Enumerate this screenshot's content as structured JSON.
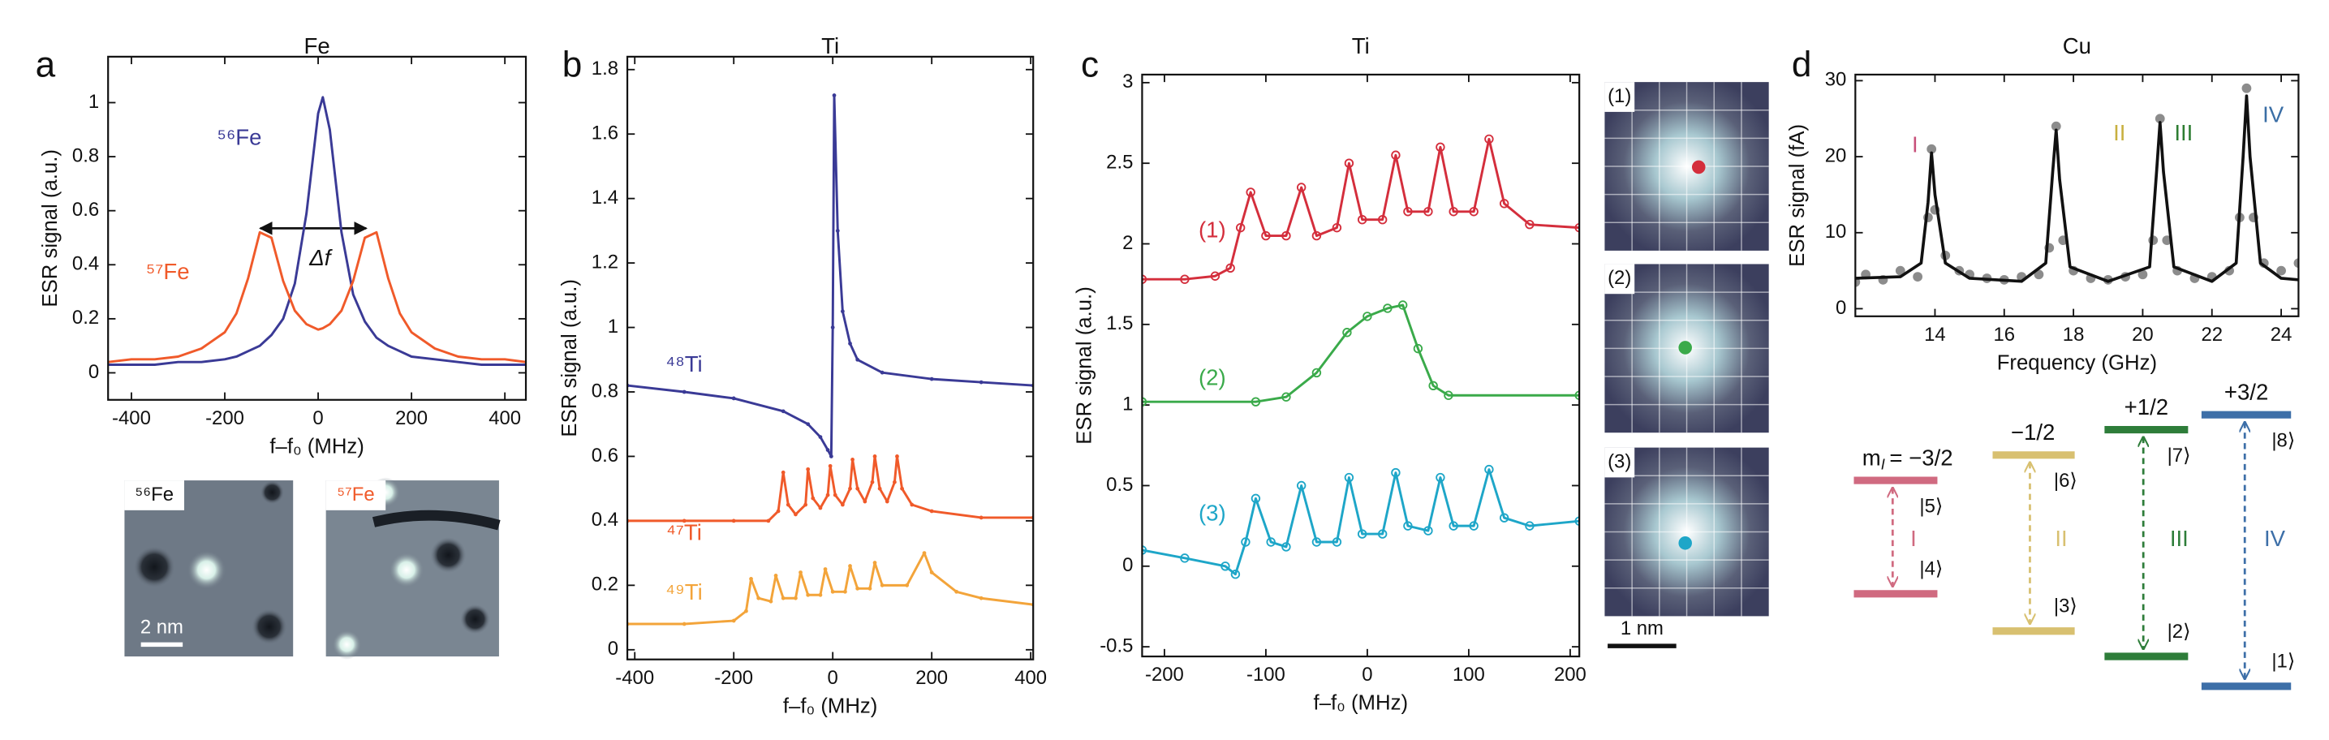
{
  "panel_labels": [
    "a",
    "b",
    "c",
    "d"
  ],
  "chart_data": [
    {
      "type": "line",
      "title": "Fe",
      "xlabel": "f–f₀ (MHz)",
      "ylabel": "ESR signal (a.u.)",
      "xlim": [
        -450,
        445
      ],
      "ylim": [
        -0.1,
        1.17
      ],
      "xticks": [
        -400,
        -200,
        0,
        200,
        400
      ],
      "yticks": [
        0,
        0.2,
        0.4,
        0.6,
        0.8,
        1
      ],
      "annotations": [
        "Δf"
      ],
      "series": [
        {
          "name": "⁵⁶Fe",
          "color": "#3a3a96",
          "line": true,
          "marker": "none",
          "x": [
            -450,
            -400,
            -350,
            -300,
            -250,
            -200,
            -175,
            -150,
            -125,
            -100,
            -75,
            -50,
            -25,
            0,
            10,
            25,
            50,
            75,
            100,
            125,
            150,
            175,
            200,
            250,
            300,
            350,
            400,
            445
          ],
          "values": [
            0.03,
            0.03,
            0.03,
            0.04,
            0.04,
            0.05,
            0.06,
            0.08,
            0.1,
            0.14,
            0.2,
            0.33,
            0.59,
            0.96,
            1.02,
            0.9,
            0.52,
            0.29,
            0.19,
            0.13,
            0.1,
            0.08,
            0.06,
            0.05,
            0.04,
            0.03,
            0.03,
            0.03
          ]
        },
        {
          "name": "⁵⁷Fe",
          "color": "#f05a2a",
          "line": true,
          "marker": "none",
          "x": [
            -450,
            -400,
            -350,
            -300,
            -250,
            -200,
            -175,
            -150,
            -125,
            -100,
            -75,
            -50,
            -25,
            0,
            10,
            25,
            50,
            75,
            100,
            125,
            150,
            175,
            200,
            250,
            300,
            350,
            400,
            445
          ],
          "values": [
            0.04,
            0.05,
            0.05,
            0.06,
            0.09,
            0.15,
            0.22,
            0.35,
            0.52,
            0.5,
            0.34,
            0.23,
            0.18,
            0.16,
            0.165,
            0.18,
            0.23,
            0.34,
            0.5,
            0.52,
            0.35,
            0.22,
            0.15,
            0.09,
            0.06,
            0.05,
            0.05,
            0.04
          ]
        }
      ]
    },
    {
      "type": "line",
      "title": "Ti",
      "xlabel": "f–f₀ (MHz)",
      "ylabel": "ESR signal (a.u.)",
      "xlim": [
        -415,
        405
      ],
      "ylim": [
        -0.03,
        1.84
      ],
      "xticks": [
        -400,
        -200,
        0,
        200,
        400
      ],
      "yticks": [
        0,
        0.2,
        0.4,
        0.6,
        0.8,
        1,
        1.2,
        1.4,
        1.6,
        1.8
      ],
      "series": [
        {
          "name": "⁴⁸Ti",
          "color": "#3a3a96",
          "line": true,
          "marker": "dot",
          "x": [
            -415,
            -300,
            -200,
            -100,
            -50,
            -25,
            -10,
            -3,
            0,
            3,
            10,
            20,
            35,
            50,
            100,
            200,
            300,
            405
          ],
          "values": [
            0.82,
            0.8,
            0.78,
            0.74,
            0.7,
            0.66,
            0.62,
            0.6,
            1.0,
            1.72,
            1.3,
            1.05,
            0.95,
            0.9,
            0.86,
            0.84,
            0.83,
            0.82
          ]
        },
        {
          "name": "⁴⁷Ti",
          "color": "#f05a2a",
          "line": true,
          "marker": "dot",
          "x": [
            -415,
            -300,
            -200,
            -130,
            -110,
            -100,
            -90,
            -75,
            -55,
            -50,
            -40,
            -25,
            -10,
            -5,
            5,
            20,
            35,
            40,
            50,
            65,
            80,
            85,
            95,
            110,
            125,
            130,
            140,
            160,
            200,
            300,
            405
          ],
          "values": [
            0.4,
            0.4,
            0.4,
            0.4,
            0.43,
            0.55,
            0.45,
            0.42,
            0.45,
            0.56,
            0.47,
            0.44,
            0.48,
            0.57,
            0.48,
            0.45,
            0.5,
            0.59,
            0.5,
            0.46,
            0.52,
            0.6,
            0.5,
            0.46,
            0.52,
            0.6,
            0.5,
            0.45,
            0.43,
            0.41,
            0.41
          ]
        },
        {
          "name": "⁴⁹Ti",
          "color": "#f3a43a",
          "line": true,
          "marker": "dot",
          "x": [
            -415,
            -300,
            -200,
            -175,
            -165,
            -150,
            -125,
            -115,
            -100,
            -75,
            -65,
            -50,
            -25,
            -15,
            0,
            25,
            35,
            50,
            75,
            85,
            100,
            150,
            185,
            200,
            250,
            300,
            405
          ],
          "values": [
            0.08,
            0.08,
            0.09,
            0.12,
            0.22,
            0.16,
            0.15,
            0.23,
            0.16,
            0.16,
            0.24,
            0.17,
            0.17,
            0.25,
            0.18,
            0.18,
            0.26,
            0.19,
            0.19,
            0.27,
            0.2,
            0.2,
            0.3,
            0.24,
            0.18,
            0.16,
            0.14
          ]
        }
      ]
    },
    {
      "type": "line",
      "title": "Ti",
      "xlabel": "f–f₀ (MHz)",
      "ylabel": "ESR signal (a.u.)",
      "xlim": [
        -222,
        209
      ],
      "ylim": [
        -0.56,
        3.05
      ],
      "xticks": [
        -200,
        -100,
        0,
        100,
        200
      ],
      "yticks": [
        -0.5,
        0,
        0.5,
        1,
        1.5,
        2,
        2.5,
        3
      ],
      "series": [
        {
          "name": "(1)",
          "color": "#d42e3c",
          "line": true,
          "marker": "open-circle",
          "x": [
            -222,
            -180,
            -150,
            -135,
            -125,
            -115,
            -100,
            -80,
            -65,
            -50,
            -30,
            -18,
            -5,
            15,
            28,
            40,
            60,
            72,
            85,
            105,
            120,
            135,
            160,
            209
          ],
          "values": [
            1.78,
            1.78,
            1.8,
            1.85,
            2.1,
            2.32,
            2.05,
            2.05,
            2.35,
            2.05,
            2.1,
            2.5,
            2.15,
            2.15,
            2.55,
            2.2,
            2.2,
            2.6,
            2.2,
            2.2,
            2.65,
            2.25,
            2.12,
            2.1
          ]
        },
        {
          "name": "(2)",
          "color": "#3aaa4a",
          "line": true,
          "marker": "open-circle",
          "x": [
            -222,
            -110,
            -80,
            -50,
            -20,
            0,
            20,
            35,
            50,
            65,
            80,
            209
          ],
          "values": [
            1.02,
            1.02,
            1.05,
            1.2,
            1.45,
            1.55,
            1.6,
            1.62,
            1.35,
            1.12,
            1.06,
            1.06
          ]
        },
        {
          "name": "(3)",
          "color": "#1ea6c8",
          "line": true,
          "marker": "open-circle",
          "x": [
            -222,
            -180,
            -140,
            -130,
            -120,
            -110,
            -95,
            -80,
            -65,
            -50,
            -30,
            -18,
            -5,
            15,
            28,
            40,
            60,
            72,
            85,
            105,
            120,
            135,
            160,
            209
          ],
          "values": [
            0.1,
            0.05,
            0.0,
            -0.05,
            0.15,
            0.42,
            0.15,
            0.12,
            0.5,
            0.15,
            0.15,
            0.55,
            0.2,
            0.2,
            0.58,
            0.25,
            0.22,
            0.55,
            0.25,
            0.25,
            0.6,
            0.3,
            0.25,
            0.28
          ]
        }
      ]
    },
    {
      "type": "line",
      "title": "Cu",
      "xlabel": "Frequency (GHz)",
      "ylabel": "ESR signal (fA)",
      "xlim": [
        11.7,
        24.5
      ],
      "ylim": [
        -1,
        30.8
      ],
      "xticks": [
        14,
        16,
        18,
        20,
        22,
        24
      ],
      "yticks": [
        0,
        10,
        20,
        30
      ],
      "peak_labels": [
        {
          "text": "I",
          "color": "#c8507a"
        },
        {
          "text": "II",
          "color": "#c8b040"
        },
        {
          "text": "III",
          "color": "#2e7d32"
        },
        {
          "text": "IV",
          "color": "#3a6ea5"
        }
      ],
      "series": [
        {
          "color": "#8c8c8c",
          "line": false,
          "marker": "dot-large",
          "x": [
            11.7,
            12,
            12.5,
            13,
            13.5,
            13.8,
            13.9,
            14.0,
            14.3,
            14.7,
            15,
            15.5,
            16,
            16.5,
            17,
            17.3,
            17.5,
            17.7,
            18,
            18.5,
            19,
            19.5,
            20,
            20.3,
            20.5,
            20.7,
            21,
            21.5,
            22,
            22.5,
            22.8,
            23.0,
            23.2,
            23.5,
            24,
            24.5
          ],
          "values": [
            3.5,
            4.5,
            3.8,
            5,
            4.2,
            12,
            21,
            13,
            7,
            5,
            4.5,
            4,
            3.8,
            4.2,
            4.5,
            8,
            24,
            9,
            5,
            4,
            3.8,
            4.2,
            4.5,
            9,
            25,
            9,
            5,
            4,
            4.2,
            5,
            12,
            29,
            12,
            6,
            5,
            6
          ]
        },
        {
          "color": "#111111",
          "line": true,
          "marker": "none",
          "x": [
            11.7,
            13,
            13.6,
            13.8,
            13.9,
            14.0,
            14.3,
            15,
            16.5,
            17.2,
            17.4,
            17.5,
            17.6,
            17.9,
            19,
            20.2,
            20.4,
            20.5,
            20.6,
            20.9,
            22,
            22.7,
            22.9,
            23.0,
            23.1,
            23.4,
            24,
            24.5
          ],
          "values": [
            4,
            4.2,
            6,
            14,
            20.5,
            15,
            6,
            4,
            3.6,
            6,
            18,
            23.5,
            17,
            5.5,
            3.6,
            5.5,
            18,
            24.5,
            18,
            5.5,
            3.6,
            6,
            20,
            28,
            20,
            6,
            4,
            3.8
          ]
        }
      ]
    }
  ],
  "stm_images": {
    "labels": [
      "⁵⁶Fe",
      "⁵⁷Fe"
    ],
    "scale_bar": "2 nm"
  },
  "site_images": {
    "labels": [
      "(1)",
      "(2)",
      "(3)"
    ],
    "scale_bar": "1 nm"
  },
  "energy_diagram": {
    "quantum_number": {
      "symbol": "m",
      "subscript": "I"
    },
    "levels": [
      {
        "label": "= −3/2",
        "upper": "|5⟩",
        "lower": "|4⟩",
        "transition": "I",
        "color": "#d06a80"
      },
      {
        "label": "−1/2",
        "upper": "|6⟩",
        "lower": "|3⟩",
        "transition": "II",
        "color": "#d8c070"
      },
      {
        "label": "+1/2",
        "upper": "|7⟩",
        "lower": "|2⟩",
        "transition": "III",
        "color": "#2e7d3a"
      },
      {
        "label": "+3/2",
        "upper": "|8⟩",
        "lower": "|1⟩",
        "transition": "IV",
        "color": "#3d6fa8"
      }
    ]
  }
}
